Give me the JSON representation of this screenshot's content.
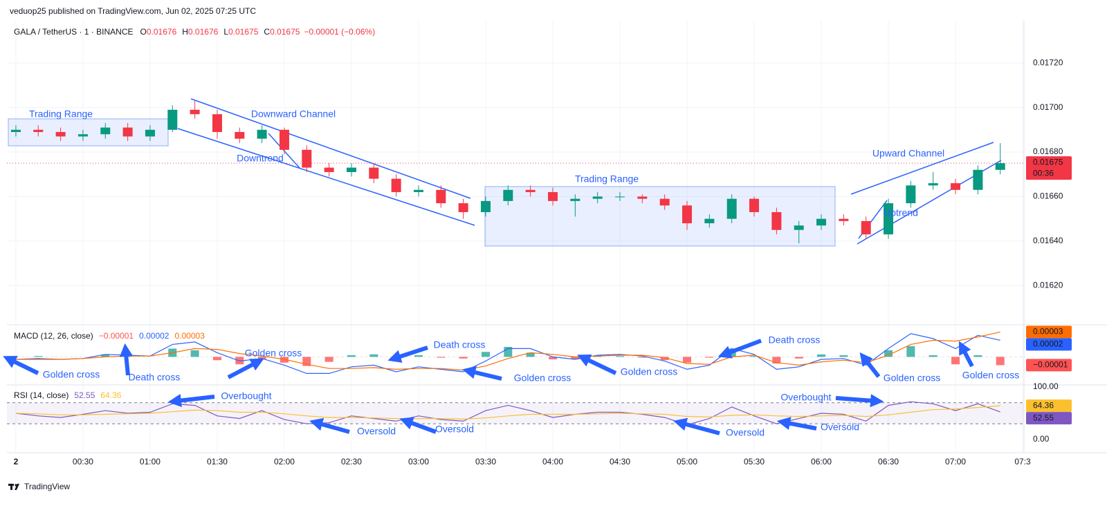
{
  "header": {
    "published": "veduop25 published on TradingView.com, Jun 02, 2025 07:25 UTC",
    "symbol": "GALA / TetherUS · 1 · BINANCE",
    "ohlc_labels": [
      "O",
      "H",
      "L",
      "C"
    ],
    "ohlc": [
      0.01676,
      0.01676,
      0.01675,
      0.01675
    ],
    "change": "−0.00001 (−0.06%)"
  },
  "footer": "TradingView",
  "chart_data": [
    {
      "type": "candlestick",
      "x": [
        0,
        10,
        20,
        30,
        40,
        50,
        60,
        70,
        80,
        90,
        100,
        110,
        120,
        130,
        140,
        150,
        160,
        170,
        180,
        190,
        200,
        210,
        220,
        230,
        240,
        250,
        260,
        270,
        280,
        290,
        300,
        310,
        320,
        330,
        340,
        350,
        360,
        370,
        380,
        390,
        400,
        410,
        420,
        430,
        440
      ],
      "open": [
        0.01689,
        0.0169,
        0.01689,
        0.01687,
        0.01688,
        0.01691,
        0.01687,
        0.0169,
        0.01699,
        0.01697,
        0.01689,
        0.01686,
        0.0169,
        0.01681,
        0.01673,
        0.01671,
        0.01673,
        0.01668,
        0.01662,
        0.01663,
        0.01657,
        0.01653,
        0.01658,
        0.01663,
        0.01662,
        0.01658,
        0.01659,
        0.0166,
        0.0166,
        0.01659,
        0.01656,
        0.01648,
        0.0165,
        0.01659,
        0.01653,
        0.01645,
        0.01647,
        0.0165,
        0.01649,
        0.01643,
        0.01657,
        0.01665,
        0.01666,
        0.01663,
        0.01672
      ],
      "high": [
        0.01692,
        0.01692,
        0.01691,
        0.0169,
        0.01693,
        0.01693,
        0.01692,
        0.01701,
        0.01703,
        0.01699,
        0.01691,
        0.01692,
        0.01691,
        0.01683,
        0.01675,
        0.01675,
        0.01675,
        0.0167,
        0.01665,
        0.01665,
        0.01659,
        0.0166,
        0.01665,
        0.01665,
        0.01664,
        0.01661,
        0.01662,
        0.01662,
        0.01661,
        0.01661,
        0.01658,
        0.01652,
        0.01661,
        0.0166,
        0.01655,
        0.01649,
        0.01652,
        0.01652,
        0.01651,
        0.01659,
        0.01667,
        0.01671,
        0.01668,
        0.01674,
        0.01684
      ],
      "low": [
        0.01687,
        0.01687,
        0.01685,
        0.01685,
        0.01686,
        0.01685,
        0.01685,
        0.01689,
        0.01695,
        0.01686,
        0.01684,
        0.01684,
        0.01679,
        0.01671,
        0.01669,
        0.01669,
        0.01666,
        0.0166,
        0.0166,
        0.01655,
        0.0165,
        0.01651,
        0.01656,
        0.0166,
        0.01656,
        0.01651,
        0.01657,
        0.01658,
        0.01657,
        0.01654,
        0.01645,
        0.01646,
        0.01648,
        0.01651,
        0.01643,
        0.01639,
        0.01645,
        0.01647,
        0.01641,
        0.01641,
        0.01655,
        0.01663,
        0.01661,
        0.01661,
        0.0167
      ],
      "close": [
        0.0169,
        0.01689,
        0.01687,
        0.01688,
        0.01691,
        0.01687,
        0.0169,
        0.01699,
        0.01697,
        0.01689,
        0.01686,
        0.0169,
        0.01681,
        0.01673,
        0.01671,
        0.01673,
        0.01668,
        0.01662,
        0.01663,
        0.01657,
        0.01653,
        0.01658,
        0.01663,
        0.01662,
        0.01658,
        0.01659,
        0.0166,
        0.0166,
        0.01659,
        0.01656,
        0.01648,
        0.0165,
        0.01659,
        0.01653,
        0.01645,
        0.01647,
        0.0165,
        0.01649,
        0.01643,
        0.01657,
        0.01665,
        0.01666,
        0.01663,
        0.01672,
        0.01675
      ],
      "up_color": "#089981",
      "down_color": "#f23645",
      "xlim": [
        -4,
        450.6
      ],
      "xticks": [
        {
          "value": 0,
          "label": "2"
        },
        {
          "value": 30,
          "label": "00:30"
        },
        {
          "value": 60,
          "label": "01:00"
        },
        {
          "value": 90,
          "label": "01:30"
        },
        {
          "value": 120,
          "label": "02:00"
        },
        {
          "value": 150,
          "label": "02:30"
        },
        {
          "value": 180,
          "label": "03:00"
        },
        {
          "value": 210,
          "label": "03:30"
        },
        {
          "value": 240,
          "label": "04:00"
        },
        {
          "value": 270,
          "label": "04:30"
        },
        {
          "value": 300,
          "label": "05:00"
        },
        {
          "value": 330,
          "label": "05:30"
        },
        {
          "value": 360,
          "label": "06:00"
        },
        {
          "value": 390,
          "label": "06:30"
        },
        {
          "value": 420,
          "label": "07:00"
        },
        {
          "value": 450,
          "label": "07:3"
        }
      ],
      "ylim": [
        0.01603,
        0.01739
      ],
      "yticks": [
        {
          "value": 0.0162,
          "label": "0.01620"
        },
        {
          "value": 0.0164,
          "label": "0.01640"
        },
        {
          "value": 0.0166,
          "label": "0.01660"
        },
        {
          "value": 0.0168,
          "label": "0.01680"
        },
        {
          "value": 0.017,
          "label": "0.01700"
        },
        {
          "value": 0.0172,
          "label": "0.01720"
        }
      ],
      "grid": true,
      "last_price": {
        "value": 0.01675,
        "label": "0.01675"
      },
      "countdown": "00:36",
      "annotations": [
        "Trading Range",
        "Downward Channel",
        "Downtrend",
        "Trading Range",
        "Upward Channel",
        "Uptrend"
      ]
    },
    {
      "type": "macd",
      "title": "MACD (12, 26, close)",
      "ylim": [
        -3.3e-05,
        3.7e-05
      ],
      "series": [
        {
          "color": "#2962ff",
          "values": [
            -3e-06,
            -2e-06,
            -3e-06,
            -2e-06,
            3e-06,
            2e-06,
            1e-06,
            1.5e-05,
            1.8e-05,
            5e-06,
            -5e-06,
            -2e-06,
            -1e-05,
            -2e-05,
            -2e-05,
            -1.2e-05,
            -1e-05,
            -1.8e-05,
            -1.2e-05,
            -1.5e-05,
            -1.8e-05,
            -5e-06,
            1e-05,
            1e-05,
            0,
            -3e-06,
            2e-06,
            3e-06,
            1e-06,
            -5e-06,
            -1.5e-05,
            -1e-05,
            1e-05,
            3e-06,
            -1.5e-05,
            -1.2e-05,
            -3e-06,
            -2e-06,
            -1e-05,
            1e-05,
            2.8e-05,
            2.2e-05,
            1e-05,
            2.6e-05,
            2e-05
          ]
        },
        {
          "color": "#ff6d00",
          "values": [
            -3e-06,
            -3e-06,
            -3e-06,
            -2e-06,
            0,
            1e-06,
            1e-06,
            5e-06,
            1e-05,
            9e-06,
            4e-06,
            1e-06,
            -3e-06,
            -9e-06,
            -1.4e-05,
            -1.4e-05,
            -1.3e-05,
            -1.5e-05,
            -1.4e-05,
            -1.4e-05,
            -1.6e-05,
            -1.1e-05,
            -2e-06,
            5e-06,
            3e-06,
            0,
            1e-06,
            2e-06,
            2e-06,
            -1e-06,
            -8e-06,
            -9e-06,
            0,
            2e-06,
            -7e-06,
            -1e-05,
            -6e-06,
            -4e-06,
            -7e-06,
            2e-06,
            1.5e-05,
            2e-05,
            1.9e-05,
            2.4e-05,
            3e-05
          ]
        }
      ],
      "histogram": {
        "up_color": "#26a69a",
        "down_color": "#ff5252",
        "values": [
          0,
          1e-06,
          0,
          0,
          3e-06,
          1e-06,
          0,
          1e-05,
          8e-06,
          -4e-06,
          -9e-06,
          -3e-06,
          -7e-06,
          -1.1e-05,
          -6e-06,
          2e-06,
          3e-06,
          -3e-06,
          2e-06,
          -1e-06,
          -2e-06,
          6e-06,
          1.2e-05,
          5e-06,
          -3e-06,
          -3e-06,
          1e-06,
          1e-06,
          -1e-06,
          -4e-06,
          -7e-06,
          -1e-06,
          1e-05,
          1e-06,
          -8e-06,
          -2e-06,
          3e-06,
          2e-06,
          -3e-06,
          8e-06,
          1.3e-05,
          2e-06,
          -9e-06,
          2e-06,
          -1e-05
        ]
      },
      "legend_values": [
        "−0.00001",
        "0.00002",
        "0.00003"
      ],
      "annotations": [
        "Golden cross",
        "Death cross",
        "Golden cross",
        "Death cross",
        "Golden cross",
        "Golden cross",
        "Death cross",
        "Golden cross",
        "Golden cross"
      ]
    },
    {
      "type": "rsi",
      "title": "RSI (14, close)",
      "ylim": [
        -18.4,
        100
      ],
      "yticks": [
        {
          "value": 0,
          "label": "0.00"
        },
        {
          "value": 100,
          "label": "100.00"
        }
      ],
      "bands": [
        70,
        30
      ],
      "band_color": "#7e57c2",
      "series": [
        {
          "color": "#7e57c2",
          "values": [
            50,
            45,
            42,
            48,
            55,
            50,
            52,
            68,
            65,
            45,
            40,
            55,
            38,
            30,
            32,
            45,
            40,
            35,
            45,
            38,
            35,
            55,
            65,
            55,
            42,
            48,
            52,
            52,
            48,
            42,
            28,
            40,
            62,
            45,
            30,
            40,
            50,
            48,
            35,
            65,
            72,
            68,
            55,
            68,
            52.55
          ]
        },
        {
          "color": "#fbc02d",
          "values": [
            50,
            49,
            47,
            47,
            48,
            49,
            50,
            53,
            56,
            55,
            52,
            52,
            49,
            45,
            42,
            42,
            41,
            40,
            40,
            40,
            39,
            41,
            45,
            48,
            48,
            48,
            49,
            50,
            49,
            48,
            44,
            43,
            46,
            47,
            45,
            44,
            45,
            46,
            44,
            47,
            52,
            57,
            58,
            61,
            64.36
          ]
        }
      ],
      "legend_values": [
        "52.55",
        "64.36"
      ],
      "annotations": [
        "Overbought",
        "Oversold",
        "Oversold",
        "Oversold",
        "Overbought",
        "Oversold"
      ]
    }
  ]
}
